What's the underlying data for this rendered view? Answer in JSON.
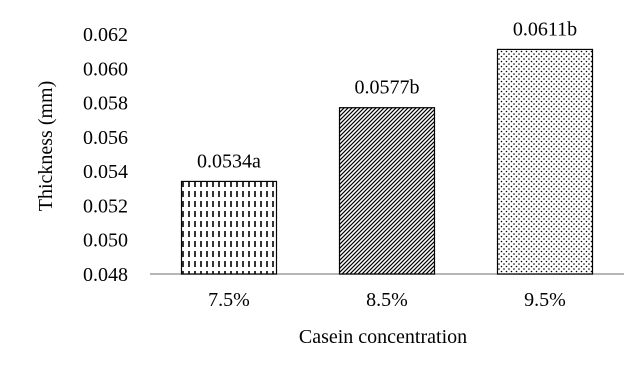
{
  "chart_data": {
    "type": "bar",
    "title": "",
    "xlabel": "Casein concentration",
    "ylabel": "Thickness (mm)",
    "categories": [
      "7.5%",
      "8.5%",
      "9.5%"
    ],
    "values": [
      0.0534,
      0.0577,
      0.0611
    ],
    "data_labels": [
      "0.0534a",
      "0.0577b",
      "0.0611b"
    ],
    "ylim": [
      0.048,
      0.062
    ],
    "yticks": [
      0.048,
      0.05,
      0.052,
      0.054,
      0.056,
      0.058,
      0.06,
      0.062
    ],
    "ytick_labels": [
      "0.048",
      "0.050",
      "0.052",
      "0.054",
      "0.056",
      "0.058",
      "0.060",
      "0.062"
    ],
    "grid": false,
    "legend": "none",
    "bar_fill_patterns": [
      "vertical-dashes",
      "diagonal-hatch",
      "dots"
    ],
    "colors": {
      "bar_stroke": "#000000",
      "pattern_ink": "#000000",
      "axis_line": "#9e9e9e",
      "background": "#ffffff"
    }
  }
}
